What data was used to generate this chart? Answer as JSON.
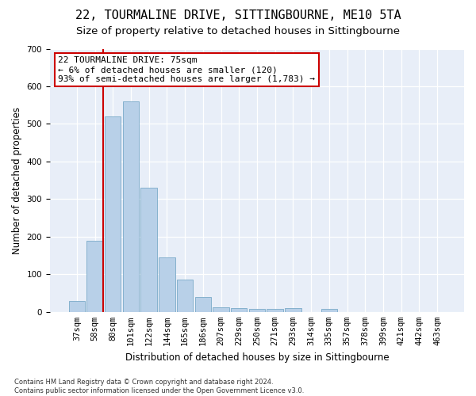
{
  "title": "22, TOURMALINE DRIVE, SITTINGBOURNE, ME10 5TA",
  "subtitle": "Size of property relative to detached houses in Sittingbourne",
  "xlabel": "Distribution of detached houses by size in Sittingbourne",
  "ylabel": "Number of detached properties",
  "categories": [
    "37sqm",
    "58sqm",
    "80sqm",
    "101sqm",
    "122sqm",
    "144sqm",
    "165sqm",
    "186sqm",
    "207sqm",
    "229sqm",
    "250sqm",
    "271sqm",
    "293sqm",
    "314sqm",
    "335sqm",
    "357sqm",
    "378sqm",
    "399sqm",
    "421sqm",
    "442sqm",
    "463sqm"
  ],
  "values": [
    30,
    190,
    520,
    560,
    330,
    145,
    87,
    40,
    13,
    10,
    8,
    8,
    10,
    0,
    7,
    0,
    0,
    0,
    0,
    0,
    0
  ],
  "bar_color": "#b8d0e8",
  "bar_edge_color": "#7aaac8",
  "vline_color": "#cc0000",
  "annotation_text": "22 TOURMALINE DRIVE: 75sqm\n← 6% of detached houses are smaller (120)\n93% of semi-detached houses are larger (1,783) →",
  "annotation_box_facecolor": "#ffffff",
  "annotation_box_edgecolor": "#cc0000",
  "ylim": [
    0,
    700
  ],
  "yticks": [
    0,
    100,
    200,
    300,
    400,
    500,
    600,
    700
  ],
  "background_color": "#e8eef8",
  "footer_text": "Contains HM Land Registry data © Crown copyright and database right 2024.\nContains public sector information licensed under the Open Government Licence v3.0.",
  "title_fontsize": 11,
  "subtitle_fontsize": 9.5,
  "axis_label_fontsize": 8.5,
  "tick_fontsize": 7.5,
  "annotation_fontsize": 8,
  "footer_fontsize": 6
}
